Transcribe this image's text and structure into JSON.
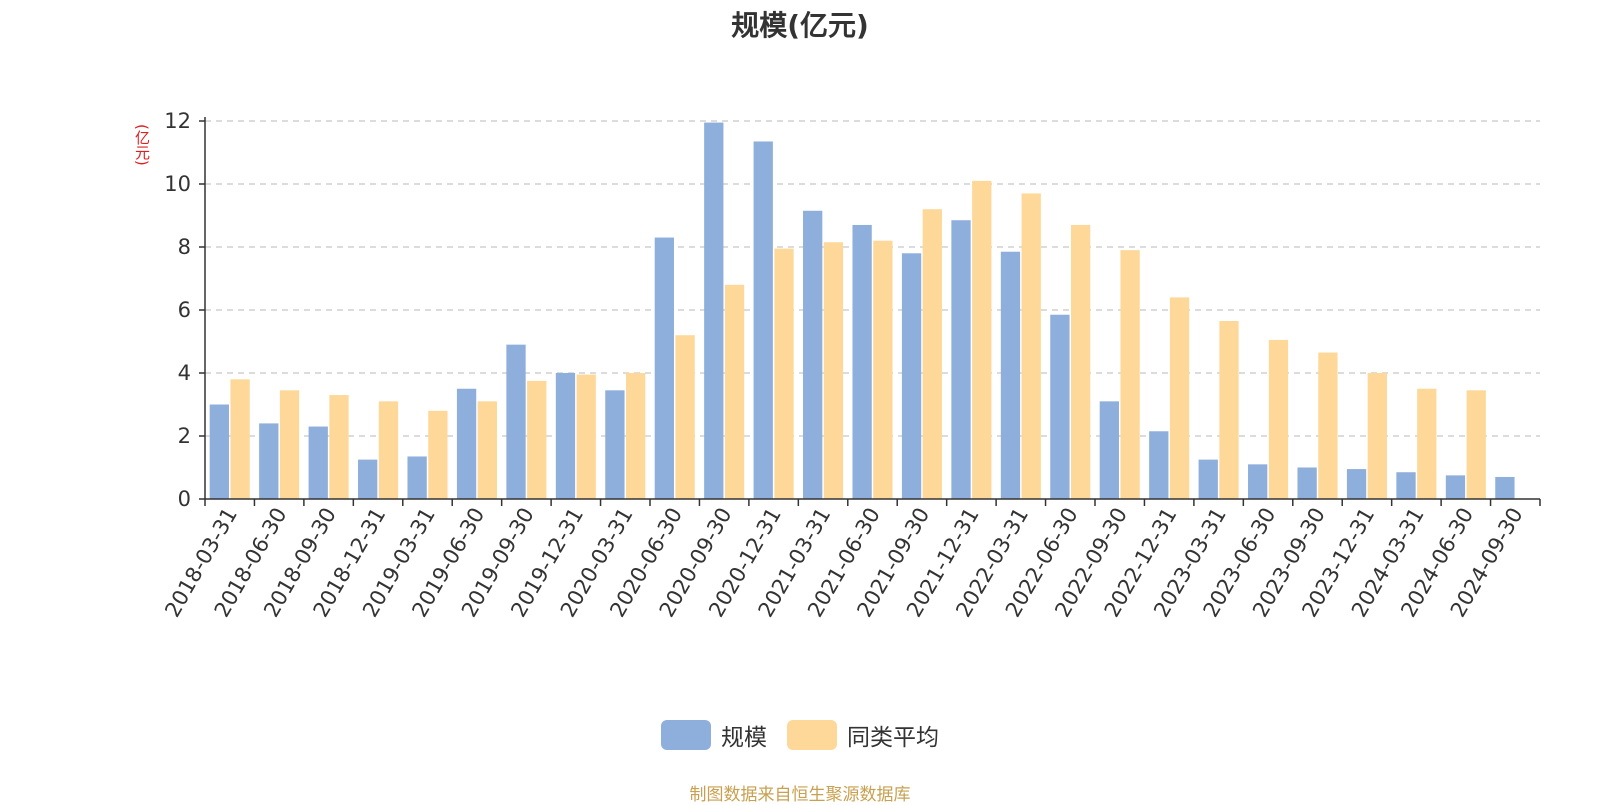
{
  "chart_data": {
    "type": "bar",
    "title": "规模(亿元)",
    "ylabel": "(亿元)",
    "xlabel": "",
    "ylim": [
      0,
      12
    ],
    "yticks": [
      0,
      2,
      4,
      6,
      8,
      10,
      12
    ],
    "grid": true,
    "legend_position": "bottom",
    "categories": [
      "2018-03-31",
      "2018-06-30",
      "2018-09-30",
      "2018-12-31",
      "2019-03-31",
      "2019-06-30",
      "2019-09-30",
      "2019-12-31",
      "2020-03-31",
      "2020-06-30",
      "2020-09-30",
      "2020-12-31",
      "2021-03-31",
      "2021-06-30",
      "2021-09-30",
      "2021-12-31",
      "2022-03-31",
      "2022-06-30",
      "2022-09-30",
      "2022-12-31",
      "2023-03-31",
      "2023-06-30",
      "2023-09-30",
      "2023-12-31",
      "2024-03-31",
      "2024-06-30",
      "2024-09-30"
    ],
    "series": [
      {
        "name": "规模",
        "color": "#8eaedc",
        "values": [
          3.0,
          2.4,
          2.3,
          1.25,
          1.35,
          3.5,
          4.9,
          4.0,
          3.45,
          8.3,
          11.95,
          11.35,
          9.15,
          8.7,
          7.8,
          8.85,
          7.85,
          5.85,
          3.1,
          2.15,
          1.25,
          1.1,
          1.0,
          0.95,
          0.85,
          0.75,
          0.7
        ]
      },
      {
        "name": "同类平均",
        "color": "#fdd899",
        "values": [
          3.8,
          3.45,
          3.3,
          3.1,
          2.8,
          3.1,
          3.75,
          3.95,
          4.0,
          5.2,
          6.8,
          7.95,
          8.15,
          8.2,
          9.2,
          10.1,
          9.7,
          8.7,
          7.9,
          6.4,
          5.65,
          5.05,
          4.65,
          4.0,
          3.5,
          3.45,
          null
        ]
      }
    ]
  },
  "source_note": "制图数据来自恒生聚源数据库"
}
